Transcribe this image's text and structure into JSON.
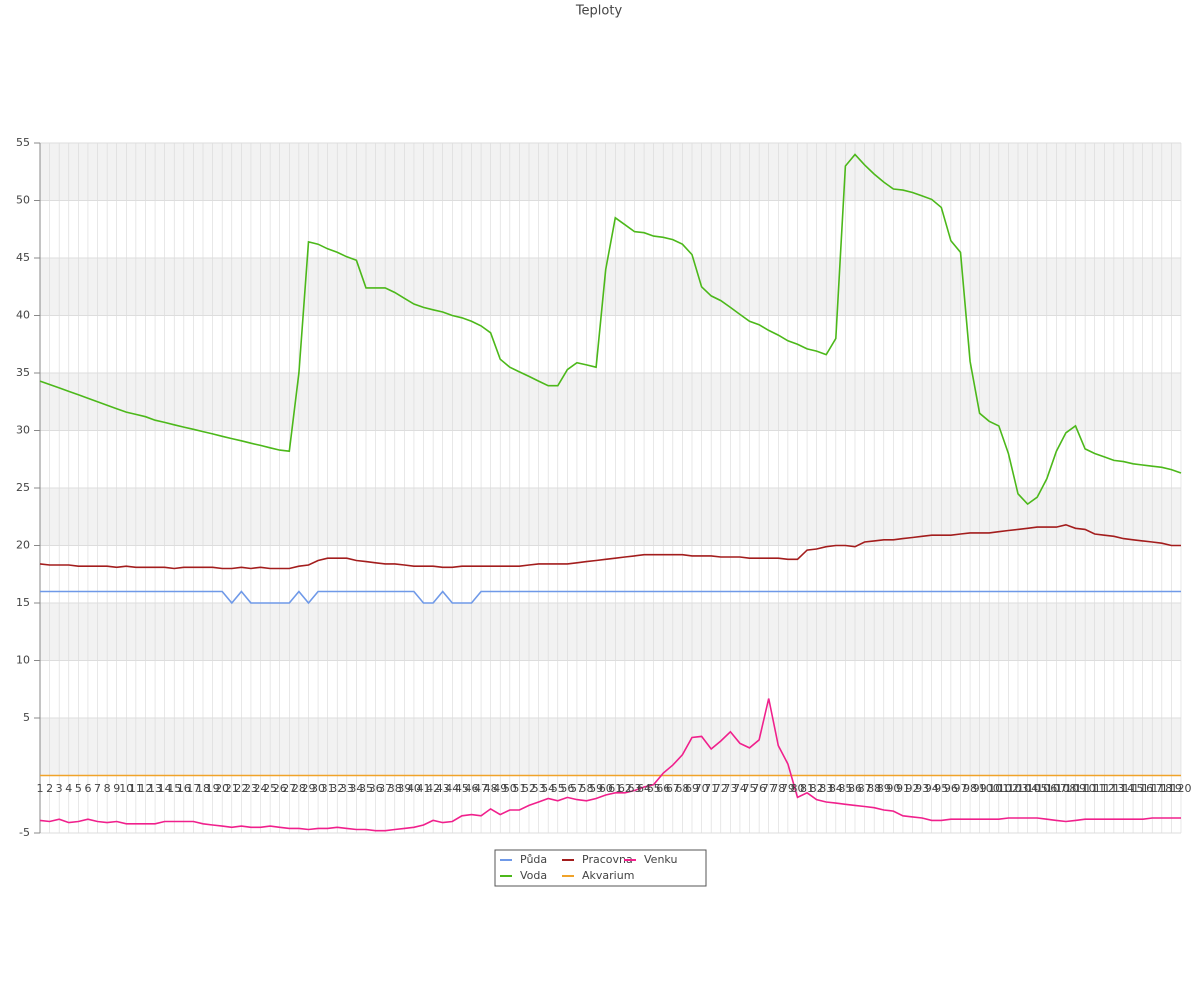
{
  "chart_data": {
    "type": "line",
    "title": "Teploty",
    "categories": [
      1,
      2,
      3,
      4,
      5,
      6,
      7,
      8,
      9,
      10,
      11,
      12,
      13,
      14,
      15,
      16,
      17,
      18,
      19,
      20,
      21,
      22,
      23,
      24,
      25,
      26,
      27,
      28,
      29,
      30,
      31,
      32,
      33,
      34,
      35,
      36,
      37,
      38,
      39,
      40,
      41,
      42,
      43,
      44,
      45,
      46,
      47,
      48,
      49,
      50,
      51,
      52,
      53,
      54,
      55,
      56,
      57,
      58,
      59,
      60,
      61,
      62,
      63,
      64,
      65,
      66,
      67,
      68,
      69,
      70,
      71,
      72,
      73,
      74,
      75,
      76,
      77,
      78,
      79,
      80,
      81,
      82,
      83,
      84,
      85,
      86,
      87,
      88,
      89,
      90,
      91,
      92,
      93,
      94,
      95,
      96,
      97,
      98,
      99,
      100,
      101,
      102,
      103,
      104,
      105,
      106,
      107,
      108,
      109,
      110,
      111,
      112,
      113,
      114,
      115,
      116,
      117,
      118,
      119,
      120
    ],
    "ylim": [
      -5,
      55
    ],
    "yticks": [
      -5,
      5,
      10,
      15,
      20,
      25,
      30,
      35,
      40,
      45,
      50,
      55
    ],
    "grid": true,
    "series": [
      {
        "name": "Půda",
        "color": "#6f99e8",
        "values": [
          16,
          16,
          16,
          16,
          16,
          16,
          16,
          16,
          16,
          16,
          16,
          16,
          16,
          16,
          16,
          16,
          16,
          16,
          16,
          16,
          15,
          16,
          15,
          15,
          15,
          15,
          15,
          16,
          15,
          16,
          16,
          16,
          16,
          16,
          16,
          16,
          16,
          16,
          16,
          16,
          15,
          15,
          16,
          15,
          15,
          15,
          16,
          16,
          16,
          16,
          16,
          16,
          16,
          16,
          16,
          16,
          16,
          16,
          16,
          16,
          16,
          16,
          16,
          16,
          16,
          16,
          16,
          16,
          16,
          16,
          16,
          16,
          16,
          16,
          16,
          16,
          16,
          16,
          16,
          16,
          16,
          16,
          16,
          16,
          16,
          16,
          16,
          16,
          16,
          16,
          16,
          16,
          16,
          16,
          16,
          16,
          16,
          16,
          16,
          16,
          16,
          16,
          16,
          16,
          16,
          16,
          16,
          16,
          16,
          16,
          16,
          16,
          16,
          16,
          16,
          16,
          16,
          16,
          16,
          16
        ]
      },
      {
        "name": "Voda",
        "color": "#4cb81a",
        "values": [
          34.3,
          34.0,
          33.7,
          33.4,
          33.1,
          32.8,
          32.5,
          32.2,
          31.9,
          31.6,
          31.4,
          31.2,
          30.9,
          30.7,
          30.5,
          30.3,
          30.1,
          29.9,
          29.7,
          29.5,
          29.3,
          29.1,
          28.9,
          28.7,
          28.5,
          28.3,
          28.2,
          35,
          46.4,
          46.2,
          45.8,
          45.5,
          45.1,
          44.8,
          42.4,
          42.4,
          42.4,
          42.0,
          41.5,
          41.0,
          40.7,
          40.5,
          40.3,
          40.0,
          39.8,
          39.5,
          39.1,
          38.5,
          36.2,
          35.5,
          35.1,
          34.7,
          34.3,
          33.9,
          33.9,
          35.3,
          35.9,
          35.7,
          35.5,
          44,
          48.5,
          47.9,
          47.3,
          47.2,
          46.9,
          46.8,
          46.6,
          46.2,
          45.3,
          42.5,
          41.7,
          41.3,
          40.7,
          40.1,
          39.5,
          39.2,
          38.7,
          38.3,
          37.8,
          37.5,
          37.1,
          36.9,
          36.6,
          38,
          53,
          54,
          53.1,
          52.3,
          51.6,
          51.0,
          50.9,
          50.7,
          50.4,
          50.1,
          49.4,
          46.5,
          45.5,
          36,
          31.5,
          30.8,
          30.4,
          28,
          24.5,
          23.6,
          24.2,
          25.8,
          28.2,
          29.8,
          30.4,
          28.4,
          28.0,
          27.7,
          27.4,
          27.3,
          27.1,
          27.0,
          26.9,
          26.8,
          26.6,
          26.3
        ]
      },
      {
        "name": "Pracovna",
        "color": "#a31d1d",
        "values": [
          18.4,
          18.3,
          18.3,
          18.3,
          18.2,
          18.2,
          18.2,
          18.2,
          18.1,
          18.2,
          18.1,
          18.1,
          18.1,
          18.1,
          18.0,
          18.1,
          18.1,
          18.1,
          18.1,
          18.0,
          18.0,
          18.1,
          18.0,
          18.1,
          18.0,
          18.0,
          18.0,
          18.2,
          18.3,
          18.7,
          18.9,
          18.9,
          18.9,
          18.7,
          18.6,
          18.5,
          18.4,
          18.4,
          18.3,
          18.2,
          18.2,
          18.2,
          18.1,
          18.1,
          18.2,
          18.2,
          18.2,
          18.2,
          18.2,
          18.2,
          18.2,
          18.3,
          18.4,
          18.4,
          18.4,
          18.4,
          18.5,
          18.6,
          18.7,
          18.8,
          18.9,
          19.0,
          19.1,
          19.2,
          19.2,
          19.2,
          19.2,
          19.2,
          19.1,
          19.1,
          19.1,
          19.0,
          19.0,
          19.0,
          18.9,
          18.9,
          18.9,
          18.9,
          18.8,
          18.8,
          19.6,
          19.7,
          19.9,
          20.0,
          20.0,
          19.9,
          20.3,
          20.4,
          20.5,
          20.5,
          20.6,
          20.7,
          20.8,
          20.9,
          20.9,
          20.9,
          21.0,
          21.1,
          21.1,
          21.1,
          21.2,
          21.3,
          21.4,
          21.5,
          21.6,
          21.6,
          21.6,
          21.8,
          21.5,
          21.4,
          21.0,
          20.9,
          20.8,
          20.6,
          20.5,
          20.4,
          20.3,
          20.2,
          20.0,
          20.0
        ]
      },
      {
        "name": "Akvarium",
        "color": "#f0a32a",
        "values": [
          0,
          0,
          0,
          0,
          0,
          0,
          0,
          0,
          0,
          0,
          0,
          0,
          0,
          0,
          0,
          0,
          0,
          0,
          0,
          0,
          0,
          0,
          0,
          0,
          0,
          0,
          0,
          0,
          0,
          0,
          0,
          0,
          0,
          0,
          0,
          0,
          0,
          0,
          0,
          0,
          0,
          0,
          0,
          0,
          0,
          0,
          0,
          0,
          0,
          0,
          0,
          0,
          0,
          0,
          0,
          0,
          0,
          0,
          0,
          0,
          0,
          0,
          0,
          0,
          0,
          0,
          0,
          0,
          0,
          0,
          0,
          0,
          0,
          0,
          0,
          0,
          0,
          0,
          0,
          0,
          0,
          0,
          0,
          0,
          0,
          0,
          0,
          0,
          0,
          0,
          0,
          0,
          0,
          0,
          0,
          0,
          0,
          0,
          0,
          0,
          0,
          0,
          0,
          0,
          0,
          0,
          0,
          0,
          0,
          0,
          0,
          0,
          0,
          0,
          0,
          0,
          0,
          0,
          0,
          0
        ]
      },
      {
        "name": "Venku",
        "color": "#f0208c",
        "values": [
          -3.9,
          -4.0,
          -3.8,
          -4.1,
          -4.0,
          -3.8,
          -4.0,
          -4.1,
          -4.0,
          -4.2,
          -4.2,
          -4.2,
          -4.2,
          -4.0,
          -4.0,
          -4.0,
          -4.0,
          -4.2,
          -4.3,
          -4.4,
          -4.5,
          -4.4,
          -4.5,
          -4.5,
          -4.4,
          -4.5,
          -4.6,
          -4.6,
          -4.7,
          -4.6,
          -4.6,
          -4.5,
          -4.6,
          -4.7,
          -4.7,
          -4.8,
          -4.8,
          -4.7,
          -4.6,
          -4.5,
          -4.3,
          -3.9,
          -4.1,
          -4.0,
          -3.5,
          -3.4,
          -3.5,
          -2.9,
          -3.4,
          -3.0,
          -3.0,
          -2.6,
          -2.3,
          -2.0,
          -2.2,
          -1.9,
          -2.1,
          -2.2,
          -2.0,
          -1.7,
          -1.5,
          -1.5,
          -1.3,
          -1.0,
          -0.8,
          0.2,
          0.9,
          1.8,
          3.3,
          3.4,
          2.3,
          3.0,
          3.8,
          2.8,
          2.4,
          3.1,
          6.7,
          2.6,
          1.0,
          -1.9,
          -1.5,
          -2.1,
          -2.3,
          -2.4,
          -2.5,
          -2.6,
          -2.7,
          -2.8,
          -3.0,
          -3.1,
          -3.5,
          -3.6,
          -3.7,
          -3.9,
          -3.9,
          -3.8,
          -3.8,
          -3.8,
          -3.8,
          -3.8,
          -3.8,
          -3.7,
          -3.7,
          -3.7,
          -3.7,
          -3.8,
          -3.9,
          -4.0,
          -3.9,
          -3.8,
          -3.8,
          -3.8,
          -3.8,
          -3.8,
          -3.8,
          -3.8,
          -3.7,
          -3.7,
          -3.7,
          -3.7
        ]
      }
    ]
  }
}
